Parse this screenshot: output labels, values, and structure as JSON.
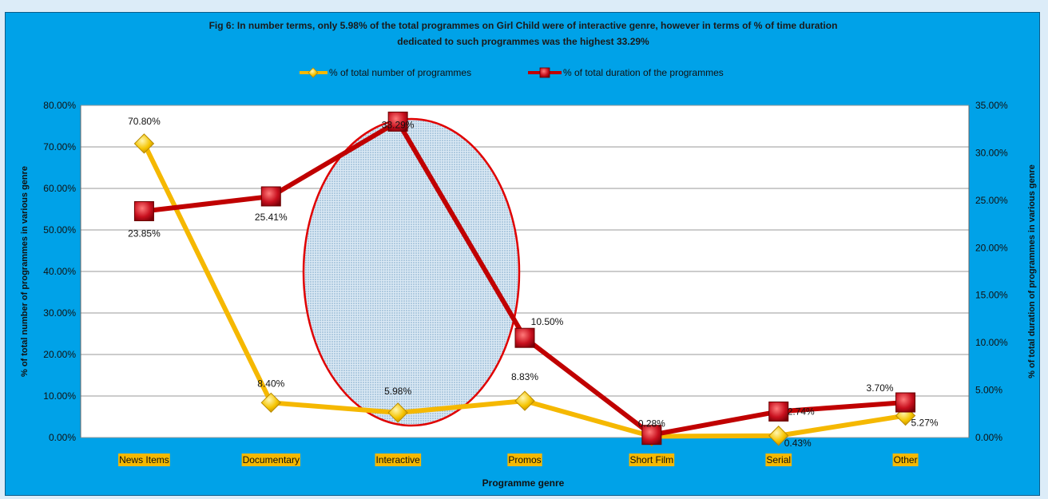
{
  "chart_data": {
    "type": "line",
    "title_line1": "Fig 6: In number terms, only 5.98% of the total programmes on Girl Child were of interactive genre, however in terms of % of time duration",
    "title_line2": "dedicated to such programmes was the highest 33.29%",
    "categories": [
      "News Items",
      "Documentary",
      "Interactive",
      "Promos",
      "Short Film",
      "Serial",
      "Other"
    ],
    "xlabel": "Programme genre",
    "ylabel_left": "% of total number of programmes in various genre",
    "ylabel_right": "% of total duration of programmes in various genre",
    "y_left": {
      "min": 0,
      "max": 80,
      "step": 10,
      "ticks": [
        "0.00%",
        "10.00%",
        "20.00%",
        "30.00%",
        "40.00%",
        "50.00%",
        "60.00%",
        "70.00%",
        "80.00%"
      ]
    },
    "y_right": {
      "min": 0,
      "max": 35,
      "step": 5,
      "ticks": [
        "0.00%",
        "5.00%",
        "10.00%",
        "15.00%",
        "20.00%",
        "25.00%",
        "30.00%",
        "35.00%"
      ]
    },
    "grid": true,
    "legend_position": "top",
    "highlight_category": "Interactive",
    "series": [
      {
        "name": "% of total number of programmes",
        "axis": "left",
        "color": "#f5b800",
        "marker": "diamond",
        "values": [
          70.8,
          8.4,
          5.98,
          8.83,
          0.28,
          0.43,
          5.27
        ],
        "labels": [
          "70.80%",
          "8.40%",
          "5.98%",
          "8.83%",
          "0.28%",
          "0.43%",
          "5.27%"
        ]
      },
      {
        "name": "% of total duration of the programmes",
        "axis": "right",
        "color": "#c00000",
        "marker": "square",
        "values": [
          23.85,
          25.41,
          33.29,
          10.5,
          0.28,
          2.74,
          3.7
        ],
        "labels": [
          "23.85%",
          "25.41%",
          "33.29%",
          "10.50%",
          "",
          "2.74%",
          "3.70%"
        ]
      }
    ]
  }
}
